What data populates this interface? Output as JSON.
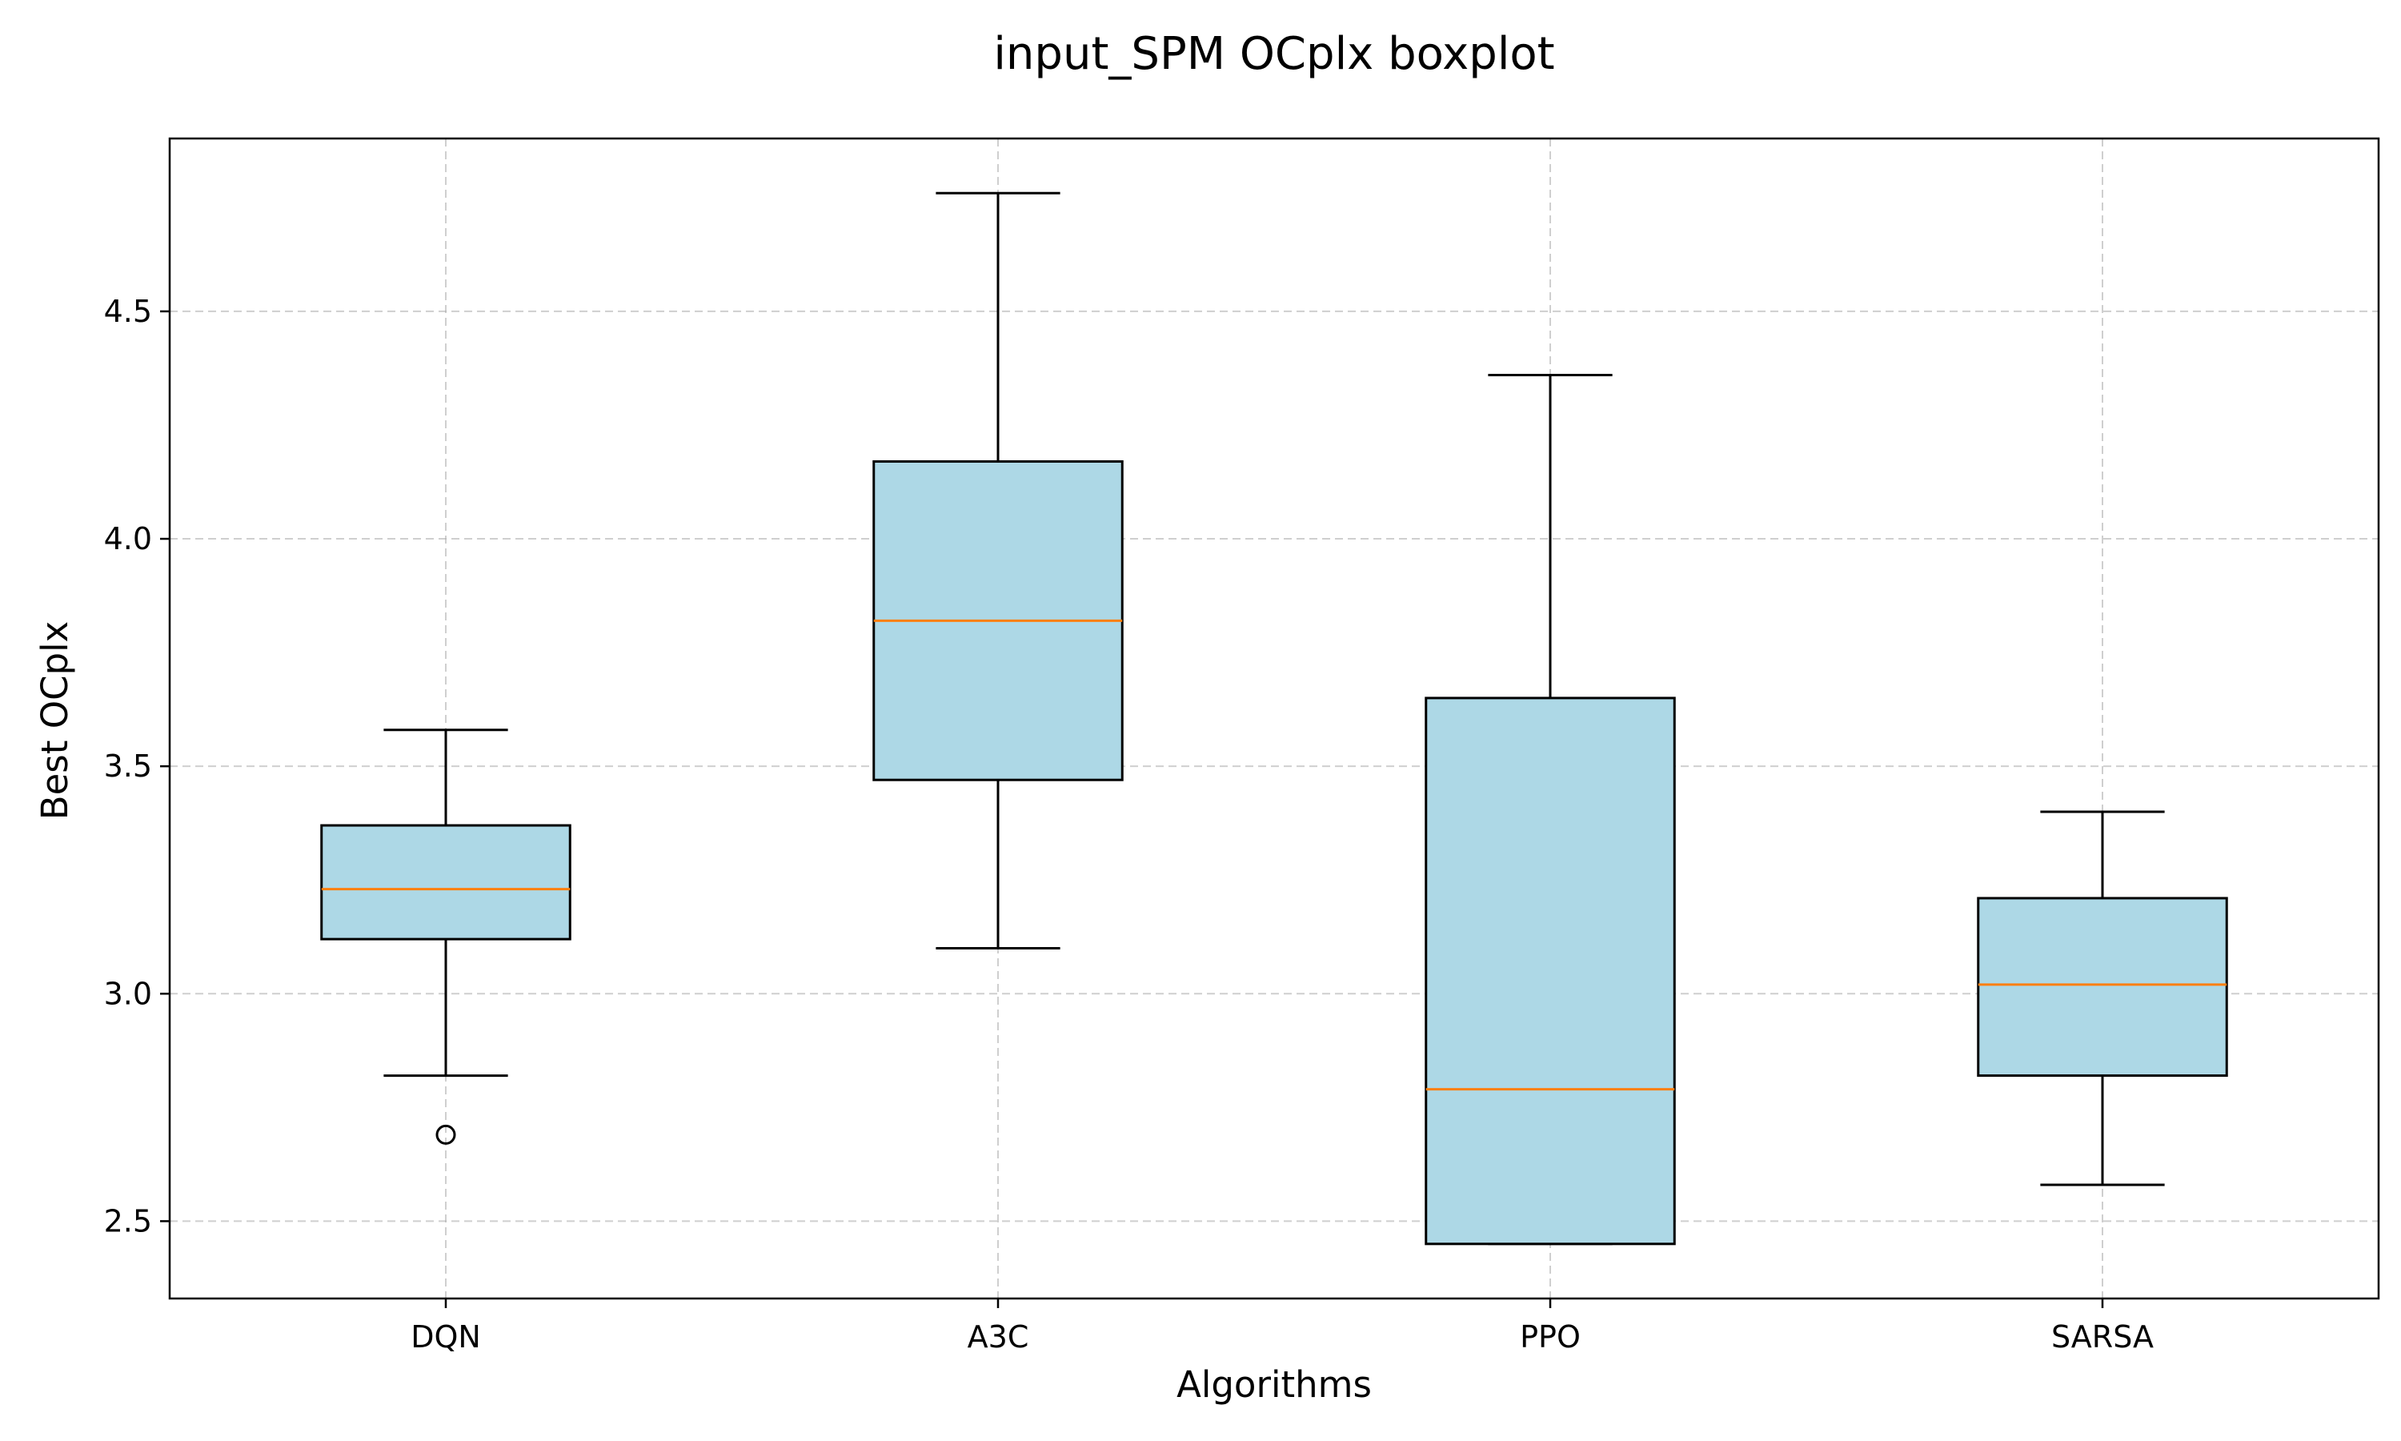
{
  "chart_data": {
    "type": "boxplot",
    "title": "input_SPM OCplx boxplot",
    "xlabel": "Algorithms",
    "ylabel": "Best OCplx",
    "categories": [
      "DQN",
      "A3C",
      "PPO",
      "SARSA"
    ],
    "ylim": [
      2.33,
      4.88
    ],
    "yticks": [
      2.5,
      3.0,
      3.5,
      4.0,
      4.5
    ],
    "ytick_labels": [
      "2.5",
      "3.0",
      "3.5",
      "4.0",
      "4.5"
    ],
    "grid": true,
    "colors": {
      "box_fill": "#add8e6",
      "median": "#ff7f0e",
      "edge": "#000000",
      "grid": "#b0b0b0"
    },
    "boxes": [
      {
        "name": "DQN",
        "whislo": 2.82,
        "q1": 3.12,
        "med": 3.23,
        "q3": 3.37,
        "whishi": 3.58,
        "fliers": [
          2.69
        ]
      },
      {
        "name": "A3C",
        "whislo": 3.1,
        "q1": 3.47,
        "med": 3.82,
        "q3": 4.17,
        "whishi": 4.76,
        "fliers": []
      },
      {
        "name": "PPO",
        "whislo": 2.45,
        "q1": 2.45,
        "med": 2.79,
        "q3": 3.65,
        "whishi": 4.36,
        "fliers": []
      },
      {
        "name": "SARSA",
        "whislo": 2.58,
        "q1": 2.82,
        "med": 3.02,
        "q3": 3.21,
        "whishi": 3.4,
        "fliers": []
      }
    ]
  }
}
